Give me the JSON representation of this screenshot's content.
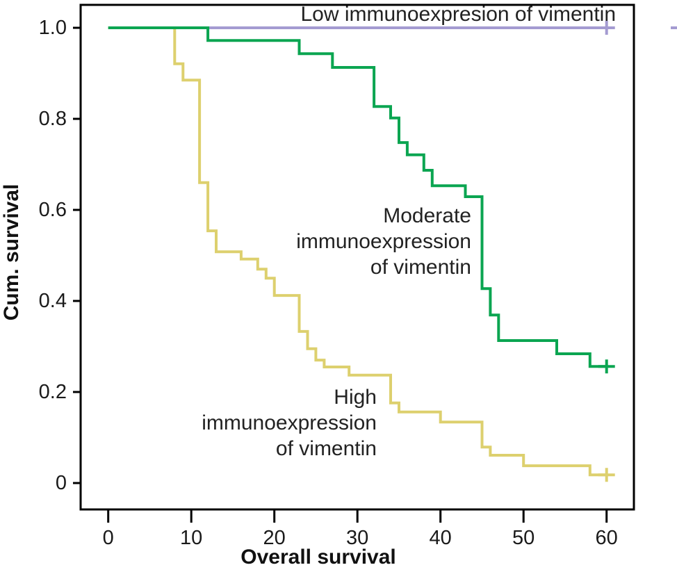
{
  "axes": {
    "x_label": "Overall survival",
    "y_label": "Cum. survival",
    "x_ticks": [
      "0",
      "10",
      "20",
      "30",
      "40",
      "50",
      "60"
    ],
    "y_ticks": [
      "1.0",
      "0.8",
      "0.6",
      "0.4",
      "0.2",
      "0"
    ]
  },
  "annotations": {
    "low": "Low immunoexpresion of vimentin",
    "moderate": [
      "Moderate",
      "immunoexpression",
      "of vimentin"
    ],
    "high": [
      "High",
      "immunoexpression",
      "of vimentin"
    ]
  },
  "chart_data": {
    "type": "line",
    "subtype": "kaplan-meier-step",
    "title": "",
    "xlabel": "Overall survival",
    "ylabel": "Cum. survival",
    "xlim": [
      -3.3,
      63.3
    ],
    "ylim": [
      -0.06,
      1.05
    ],
    "x_ticks": [
      0,
      10,
      20,
      30,
      40,
      50,
      60
    ],
    "y_ticks": [
      1.0,
      0.8,
      0.6,
      0.4,
      0.2,
      0
    ],
    "grid": false,
    "legend": "inline-annotations",
    "follow_up_end": 60,
    "colors": {
      "low": "#a49bd1",
      "moderate": "#0ba551",
      "high": "#ddd06e",
      "axis": "#000000"
    },
    "series": [
      {
        "id": "low",
        "name": "Low immunoexpresion of vimentin",
        "color": "#a49bd1",
        "steps": [
          [
            0,
            1.0
          ]
        ],
        "censors": [
          [
            60,
            1.0
          ]
        ]
      },
      {
        "id": "high",
        "name": "High immunoexpression of vimentin",
        "color": "#ddd06e",
        "steps": [
          [
            0,
            1.0
          ],
          [
            8,
            0.921
          ],
          [
            9,
            0.885
          ],
          [
            11,
            0.66
          ],
          [
            12,
            0.554
          ],
          [
            13,
            0.508
          ],
          [
            16,
            0.492
          ],
          [
            18,
            0.47
          ],
          [
            19,
            0.45
          ],
          [
            20,
            0.412
          ],
          [
            23,
            0.333
          ],
          [
            24,
            0.295
          ],
          [
            25,
            0.27
          ],
          [
            26,
            0.255
          ],
          [
            29,
            0.237
          ],
          [
            34,
            0.176
          ],
          [
            35,
            0.156
          ],
          [
            40,
            0.134
          ],
          [
            45,
            0.079
          ],
          [
            46,
            0.061
          ],
          [
            50,
            0.038
          ],
          [
            58,
            0.018
          ]
        ],
        "censors": [
          [
            60,
            0.018
          ]
        ]
      },
      {
        "id": "moderate",
        "name": "Moderate immunoexpression of vimentin",
        "color": "#0ba551",
        "steps": [
          [
            0,
            1.0
          ],
          [
            12,
            0.972
          ],
          [
            23,
            0.943
          ],
          [
            27,
            0.913
          ],
          [
            32,
            0.827
          ],
          [
            34,
            0.802
          ],
          [
            35,
            0.748
          ],
          [
            36,
            0.721
          ],
          [
            38,
            0.687
          ],
          [
            39,
            0.653
          ],
          [
            43,
            0.629
          ],
          [
            45,
            0.427
          ],
          [
            46,
            0.369
          ],
          [
            47,
            0.313
          ],
          [
            54,
            0.284
          ],
          [
            58,
            0.256
          ]
        ],
        "censors": [
          [
            60,
            0.256
          ]
        ]
      }
    ]
  }
}
